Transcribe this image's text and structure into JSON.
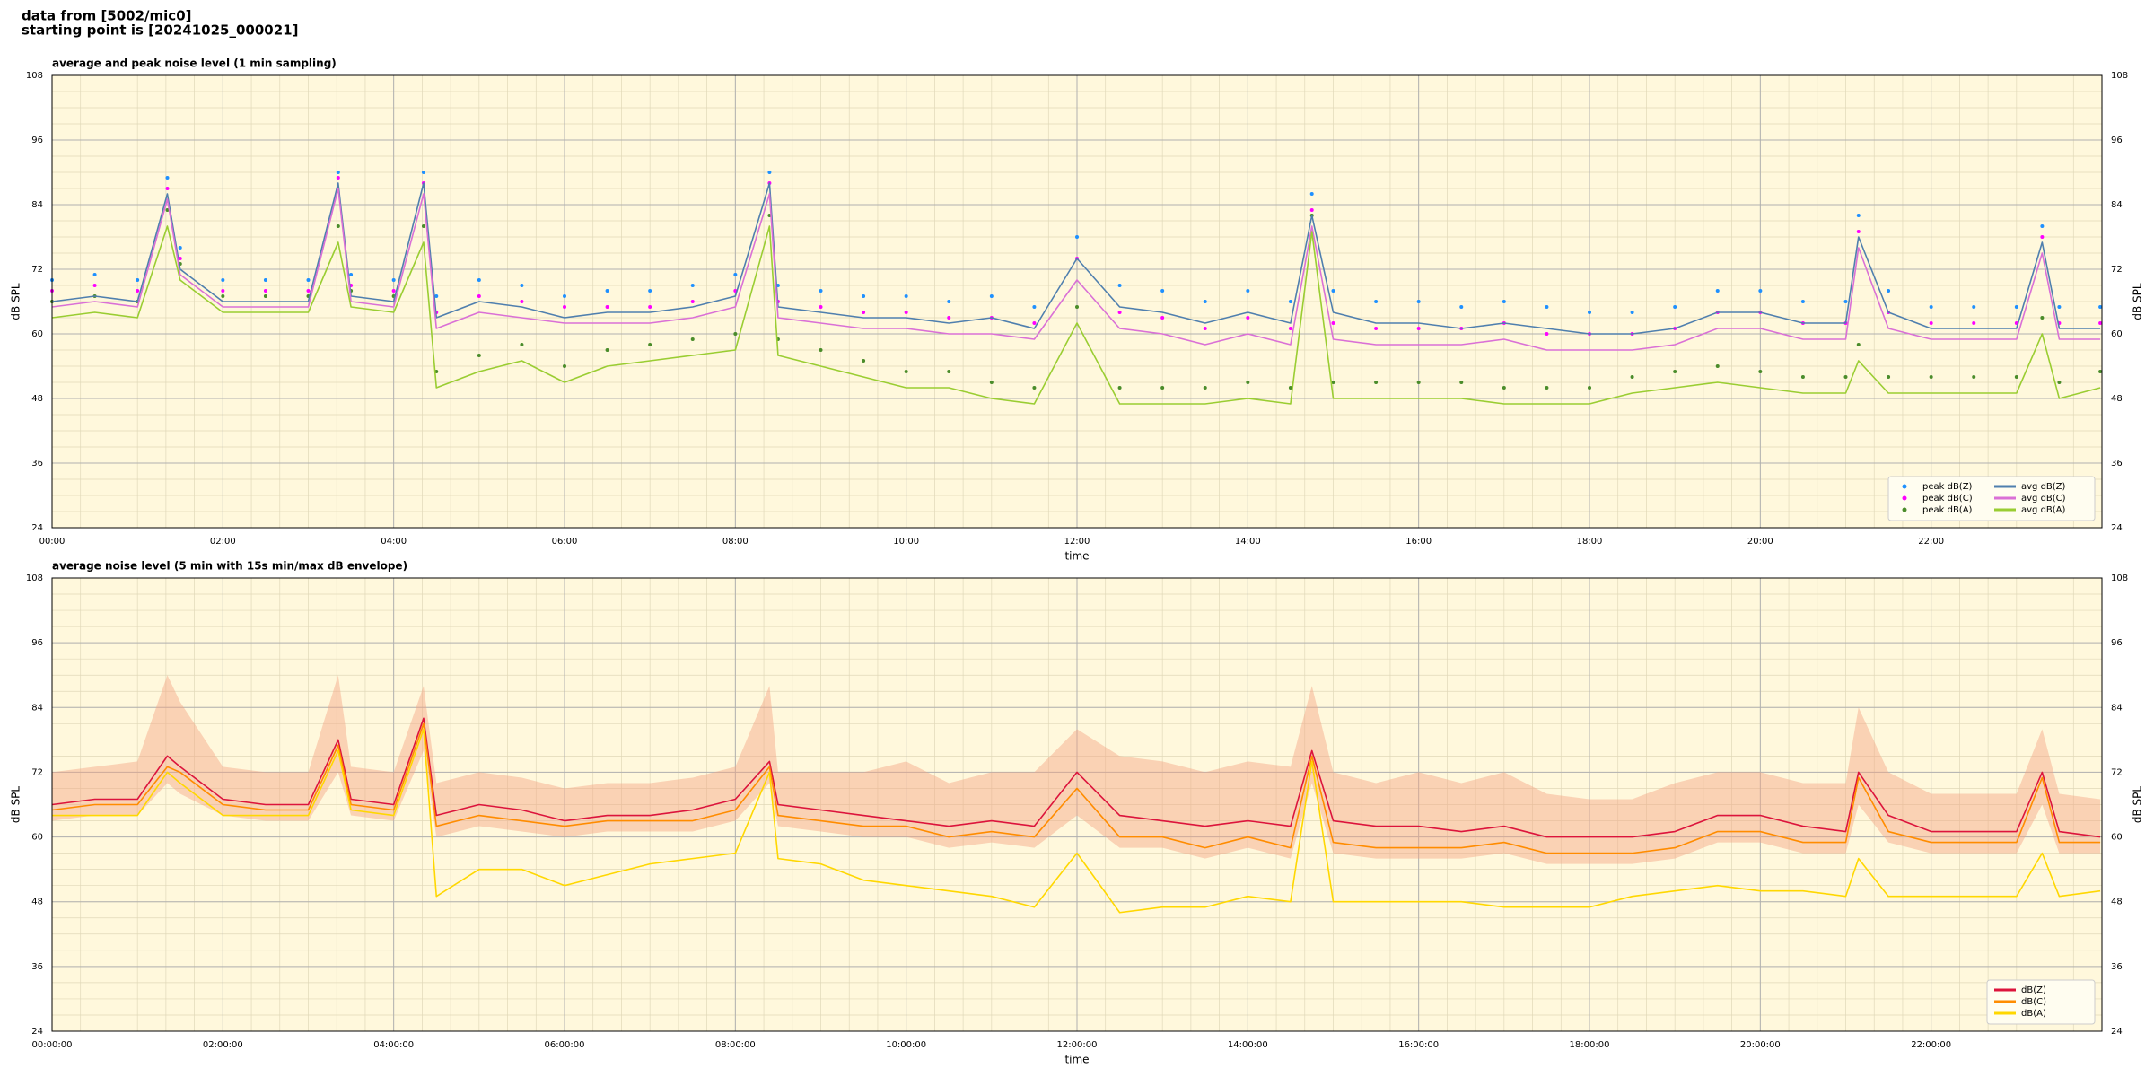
{
  "header": [
    "data from [5002/mic0]",
    "starting point is [20241025_000021]"
  ],
  "chart_data": [
    {
      "type": "line",
      "title": "average and peak noise level (1 min sampling)",
      "xlabel": "time",
      "ylabel": "dB SPL",
      "x": [
        0,
        0.5,
        1,
        1.35,
        1.5,
        2,
        2.5,
        3,
        3.35,
        3.5,
        4,
        4.35,
        4.5,
        5,
        5.5,
        6,
        6.5,
        7,
        7.5,
        8,
        8.4,
        8.5,
        9,
        9.5,
        10,
        10.5,
        11,
        11.5,
        12,
        12.5,
        13,
        13.5,
        14,
        14.5,
        14.75,
        15,
        15.5,
        16,
        16.5,
        17,
        17.5,
        18,
        18.5,
        19,
        19.5,
        20,
        20.5,
        21,
        21.15,
        21.5,
        22,
        22.5,
        23,
        23.3,
        23.5,
        23.98
      ],
      "xlim": [
        0,
        24
      ],
      "xticks": [
        {
          "value": 0,
          "label": "00:00"
        },
        {
          "value": 2,
          "label": "02:00"
        },
        {
          "value": 4,
          "label": "04:00"
        },
        {
          "value": 6,
          "label": "06:00"
        },
        {
          "value": 8,
          "label": "08:00"
        },
        {
          "value": 10,
          "label": "10:00"
        },
        {
          "value": 12,
          "label": "12:00"
        },
        {
          "value": 14,
          "label": "14:00"
        },
        {
          "value": 16,
          "label": "16:00"
        },
        {
          "value": 18,
          "label": "18:00"
        },
        {
          "value": 20,
          "label": "20:00"
        },
        {
          "value": 22,
          "label": "22:00"
        }
      ],
      "ylim": [
        24,
        108
      ],
      "yticks": [
        24,
        36,
        48,
        60,
        72,
        84,
        96,
        108
      ],
      "grid": true,
      "legend": "lower right",
      "legend_columns": 2,
      "series": [
        {
          "name": "peak dB(Z)",
          "color": "#1e90ff",
          "kind": "scatter",
          "values": [
            70,
            71,
            70,
            89,
            76,
            70,
            70,
            70,
            90,
            71,
            70,
            90,
            67,
            70,
            69,
            67,
            68,
            68,
            69,
            71,
            90,
            69,
            68,
            67,
            67,
            66,
            67,
            65,
            78,
            69,
            68,
            66,
            68,
            66,
            86,
            68,
            66,
            66,
            65,
            66,
            65,
            64,
            64,
            65,
            68,
            68,
            66,
            66,
            82,
            68,
            65,
            65,
            65,
            80,
            65,
            65
          ]
        },
        {
          "name": "peak dB(C)",
          "color": "#ff00ff",
          "kind": "scatter",
          "values": [
            68,
            69,
            68,
            87,
            74,
            68,
            68,
            68,
            89,
            69,
            68,
            88,
            64,
            67,
            66,
            65,
            65,
            65,
            66,
            68,
            88,
            66,
            65,
            64,
            64,
            63,
            63,
            62,
            74,
            64,
            63,
            61,
            63,
            61,
            83,
            62,
            61,
            61,
            61,
            62,
            60,
            60,
            60,
            61,
            64,
            64,
            62,
            62,
            79,
            64,
            62,
            62,
            62,
            78,
            62,
            62
          ]
        },
        {
          "name": "peak dB(A)",
          "color": "#4a8c2a",
          "kind": "scatter",
          "values": [
            66,
            67,
            66,
            83,
            73,
            67,
            67,
            67,
            80,
            68,
            67,
            80,
            53,
            56,
            58,
            54,
            57,
            58,
            59,
            60,
            82,
            59,
            57,
            55,
            53,
            53,
            51,
            50,
            65,
            50,
            50,
            50,
            51,
            50,
            82,
            51,
            51,
            51,
            51,
            50,
            50,
            50,
            52,
            53,
            54,
            53,
            52,
            52,
            58,
            52,
            52,
            52,
            52,
            63,
            51,
            53
          ]
        },
        {
          "name": "avg dB(Z)",
          "color": "#4f7fae",
          "kind": "line",
          "values": [
            66,
            67,
            66,
            86,
            72,
            66,
            66,
            66,
            88,
            67,
            66,
            88,
            63,
            66,
            65,
            63,
            64,
            64,
            65,
            67,
            88,
            65,
            64,
            63,
            63,
            62,
            63,
            61,
            74,
            65,
            64,
            62,
            64,
            62,
            82,
            64,
            62,
            62,
            61,
            62,
            61,
            60,
            60,
            61,
            64,
            64,
            62,
            62,
            78,
            64,
            61,
            61,
            61,
            77,
            61,
            61
          ]
        },
        {
          "name": "avg dB(C)",
          "color": "#da70d6",
          "kind": "line",
          "values": [
            65,
            66,
            65,
            85,
            71,
            65,
            65,
            65,
            87,
            66,
            65,
            86,
            61,
            64,
            63,
            62,
            62,
            62,
            63,
            65,
            86,
            63,
            62,
            61,
            61,
            60,
            60,
            59,
            70,
            61,
            60,
            58,
            60,
            58,
            80,
            59,
            58,
            58,
            58,
            59,
            57,
            57,
            57,
            58,
            61,
            61,
            59,
            59,
            76,
            61,
            59,
            59,
            59,
            75,
            59,
            59
          ]
        },
        {
          "name": "avg dB(A)",
          "color": "#9acd32",
          "kind": "line",
          "values": [
            63,
            64,
            63,
            80,
            70,
            64,
            64,
            64,
            77,
            65,
            64,
            77,
            50,
            53,
            55,
            51,
            54,
            55,
            56,
            57,
            80,
            56,
            54,
            52,
            50,
            50,
            48,
            47,
            62,
            47,
            47,
            47,
            48,
            47,
            79,
            48,
            48,
            48,
            48,
            47,
            47,
            47,
            49,
            50,
            51,
            50,
            49,
            49,
            55,
            49,
            49,
            49,
            49,
            60,
            48,
            50
          ]
        }
      ]
    },
    {
      "type": "line",
      "title": "average noise level (5 min with 15s min/max dB envelope)",
      "xlabel": "time",
      "ylabel": "dB SPL",
      "x": [
        0,
        0.5,
        1,
        1.35,
        1.5,
        2,
        2.5,
        3,
        3.35,
        3.5,
        4,
        4.35,
        4.5,
        5,
        5.5,
        6,
        6.5,
        7,
        7.5,
        8,
        8.4,
        8.5,
        9,
        9.5,
        10,
        10.5,
        11,
        11.5,
        12,
        12.5,
        13,
        13.5,
        14,
        14.5,
        14.75,
        15,
        15.5,
        16,
        16.5,
        17,
        17.5,
        18,
        18.5,
        19,
        19.5,
        20,
        20.5,
        21,
        21.15,
        21.5,
        22,
        22.5,
        23,
        23.3,
        23.5,
        23.98
      ],
      "xlim": [
        0,
        24
      ],
      "xticks": [
        {
          "value": 0,
          "label": "00:00:00"
        },
        {
          "value": 2,
          "label": "02:00:00"
        },
        {
          "value": 4,
          "label": "04:00:00"
        },
        {
          "value": 6,
          "label": "06:00:00"
        },
        {
          "value": 8,
          "label": "08:00:00"
        },
        {
          "value": 10,
          "label": "10:00:00"
        },
        {
          "value": 12,
          "label": "12:00:00"
        },
        {
          "value": 14,
          "label": "14:00:00"
        },
        {
          "value": 16,
          "label": "16:00:00"
        },
        {
          "value": 18,
          "label": "18:00:00"
        },
        {
          "value": 20,
          "label": "20:00:00"
        },
        {
          "value": 22,
          "label": "22:00:00"
        }
      ],
      "ylim": [
        24,
        108
      ],
      "yticks": [
        24,
        36,
        48,
        60,
        72,
        84,
        96,
        108
      ],
      "grid": true,
      "legend": "lower right",
      "legend_columns": 1,
      "envelope": {
        "color": "#f4a582",
        "low": [
          63,
          64,
          64,
          70,
          68,
          64,
          63,
          63,
          72,
          64,
          63,
          76,
          60,
          62,
          61,
          60,
          61,
          61,
          61,
          63,
          70,
          62,
          61,
          60,
          60,
          58,
          59,
          58,
          64,
          58,
          58,
          56,
          58,
          56,
          70,
          57,
          56,
          56,
          56,
          57,
          55,
          55,
          55,
          56,
          59,
          59,
          57,
          57,
          66,
          59,
          57,
          57,
          57,
          66,
          57,
          57
        ],
        "high": [
          72,
          73,
          74,
          90,
          85,
          73,
          72,
          72,
          90,
          73,
          72,
          88,
          70,
          72,
          71,
          69,
          70,
          70,
          71,
          73,
          88,
          72,
          72,
          72,
          74,
          70,
          72,
          72,
          80,
          75,
          74,
          72,
          74,
          73,
          88,
          72,
          70,
          72,
          70,
          72,
          68,
          67,
          67,
          70,
          72,
          72,
          70,
          70,
          84,
          72,
          68,
          68,
          68,
          80,
          68,
          67
        ]
      },
      "series": [
        {
          "name": "dB(Z)",
          "color": "#dc143c",
          "kind": "line",
          "values": [
            66,
            67,
            67,
            75,
            73,
            67,
            66,
            66,
            78,
            67,
            66,
            82,
            64,
            66,
            65,
            63,
            64,
            64,
            65,
            67,
            74,
            66,
            65,
            64,
            63,
            62,
            63,
            62,
            72,
            64,
            63,
            62,
            63,
            62,
            76,
            63,
            62,
            62,
            61,
            62,
            60,
            60,
            60,
            61,
            64,
            64,
            62,
            61,
            72,
            64,
            61,
            61,
            61,
            72,
            61,
            60
          ]
        },
        {
          "name": "dB(C)",
          "color": "#ff8c00",
          "kind": "line",
          "values": [
            65,
            66,
            66,
            73,
            72,
            66,
            65,
            65,
            77,
            66,
            65,
            81,
            62,
            64,
            63,
            62,
            63,
            63,
            63,
            65,
            73,
            64,
            63,
            62,
            62,
            60,
            61,
            60,
            69,
            60,
            60,
            58,
            60,
            58,
            75,
            59,
            58,
            58,
            58,
            59,
            57,
            57,
            57,
            58,
            61,
            61,
            59,
            59,
            71,
            61,
            59,
            59,
            59,
            71,
            59,
            59
          ]
        },
        {
          "name": "dB(A)",
          "color": "#ffd700",
          "kind": "line",
          "values": [
            64,
            64,
            64,
            72,
            70,
            64,
            64,
            64,
            76,
            65,
            64,
            80,
            49,
            54,
            54,
            51,
            53,
            55,
            56,
            57,
            72,
            56,
            55,
            52,
            51,
            50,
            49,
            47,
            57,
            46,
            47,
            47,
            49,
            48,
            74,
            48,
            48,
            48,
            48,
            47,
            47,
            47,
            49,
            50,
            51,
            50,
            50,
            49,
            56,
            49,
            49,
            49,
            49,
            57,
            49,
            50
          ]
        }
      ]
    }
  ]
}
